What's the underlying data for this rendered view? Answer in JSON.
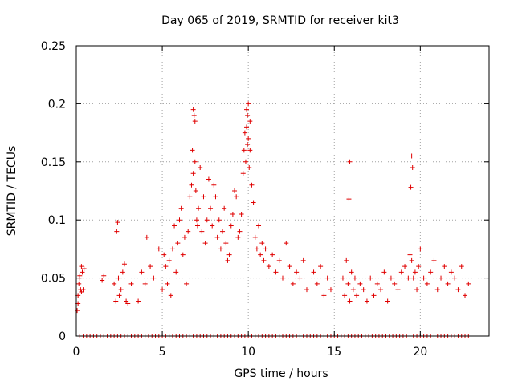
{
  "chart_data": {
    "type": "scatter",
    "title": "Day 065 of 2019, SRMTID for receiver kit3",
    "xlabel": "GPS time / hours",
    "ylabel": "SRMTID / TECUs",
    "xlim": [
      0,
      24
    ],
    "ylim": [
      0,
      0.25
    ],
    "xticks": [
      0,
      5,
      10,
      15,
      20
    ],
    "xtick_labels": [
      "0",
      "5",
      "10",
      "15",
      "20"
    ],
    "yticks": [
      0,
      0.05,
      0.1,
      0.15,
      0.2,
      0.25
    ],
    "ytick_labels": [
      "0",
      "0.05",
      "0.1",
      "0.15",
      "0.2",
      "0.25"
    ],
    "grid": true,
    "marker": "+",
    "color": "#e00000",
    "series": [
      {
        "name": "SRMTID",
        "x": [
          0.05,
          0.1,
          0.15,
          0.2,
          0.25,
          0.3,
          0.35,
          0.4,
          0.1,
          0.2,
          0.3,
          0.45,
          1.5,
          1.6,
          2.2,
          2.3,
          2.35,
          2.4,
          2.45,
          2.5,
          2.6,
          2.7,
          2.8,
          2.9,
          3.0,
          3.2,
          3.6,
          3.8,
          4.0,
          4.1,
          4.3,
          4.5,
          4.8,
          5.0,
          5.1,
          5.2,
          5.3,
          5.4,
          5.5,
          5.6,
          5.7,
          5.8,
          5.9,
          6.0,
          6.1,
          6.2,
          6.3,
          6.4,
          6.5,
          6.6,
          6.7,
          6.75,
          6.8,
          6.85,
          6.9,
          6.95,
          7.0,
          7.05,
          7.1,
          7.2,
          7.3,
          7.4,
          7.5,
          7.6,
          7.7,
          7.8,
          7.9,
          8.0,
          8.1,
          8.2,
          8.3,
          8.4,
          8.5,
          8.6,
          8.7,
          8.8,
          8.9,
          9.0,
          9.1,
          9.2,
          9.3,
          9.4,
          9.5,
          9.6,
          9.7,
          9.75,
          9.8,
          9.85,
          9.9,
          9.95,
          10.0,
          10.05,
          10.1,
          10.2,
          10.3,
          10.4,
          10.5,
          10.6,
          10.7,
          10.8,
          10.9,
          11.0,
          11.2,
          11.4,
          11.6,
          11.8,
          12.0,
          12.2,
          12.4,
          12.6,
          12.8,
          13.0,
          13.2,
          13.4,
          13.8,
          14.0,
          14.2,
          14.4,
          14.6,
          14.8,
          15.5,
          15.6,
          15.7,
          15.8,
          15.9,
          16.0,
          16.1,
          16.2,
          16.3,
          16.5,
          16.7,
          16.9,
          17.1,
          17.3,
          17.5,
          17.7,
          17.9,
          18.1,
          18.3,
          18.5,
          18.7,
          18.9,
          19.1,
          19.3,
          19.4,
          19.5,
          19.6,
          19.7,
          19.8,
          19.9,
          20.0,
          20.2,
          20.4,
          20.6,
          20.8,
          21.0,
          21.2,
          21.4,
          21.6,
          21.8,
          22.0,
          22.2,
          22.4,
          22.6,
          22.8,
          6.8,
          6.9,
          9.9,
          10.0,
          10.1,
          9.95,
          15.9,
          15.85,
          19.5,
          19.45,
          19.55
        ],
        "y": [
          0.022,
          0.035,
          0.045,
          0.05,
          0.04,
          0.06,
          0.055,
          0.04,
          0.028,
          0.052,
          0.038,
          0.058,
          0.048,
          0.052,
          0.045,
          0.03,
          0.09,
          0.098,
          0.05,
          0.035,
          0.04,
          0.055,
          0.062,
          0.03,
          0.028,
          0.045,
          0.03,
          0.055,
          0.045,
          0.085,
          0.06,
          0.05,
          0.075,
          0.04,
          0.07,
          0.06,
          0.045,
          0.065,
          0.035,
          0.075,
          0.095,
          0.055,
          0.08,
          0.1,
          0.11,
          0.07,
          0.085,
          0.045,
          0.09,
          0.12,
          0.13,
          0.16,
          0.14,
          0.19,
          0.15,
          0.125,
          0.1,
          0.095,
          0.11,
          0.145,
          0.09,
          0.12,
          0.08,
          0.1,
          0.135,
          0.11,
          0.095,
          0.13,
          0.12,
          0.085,
          0.1,
          0.075,
          0.09,
          0.11,
          0.08,
          0.065,
          0.07,
          0.095,
          0.105,
          0.125,
          0.12,
          0.085,
          0.09,
          0.105,
          0.14,
          0.16,
          0.175,
          0.15,
          0.18,
          0.165,
          0.17,
          0.145,
          0.16,
          0.13,
          0.115,
          0.085,
          0.075,
          0.095,
          0.07,
          0.08,
          0.065,
          0.075,
          0.06,
          0.07,
          0.055,
          0.065,
          0.05,
          0.08,
          0.06,
          0.045,
          0.055,
          0.05,
          0.065,
          0.04,
          0.055,
          0.045,
          0.06,
          0.035,
          0.05,
          0.04,
          0.05,
          0.035,
          0.065,
          0.045,
          0.03,
          0.055,
          0.04,
          0.05,
          0.035,
          0.045,
          0.04,
          0.03,
          0.05,
          0.035,
          0.045,
          0.04,
          0.055,
          0.03,
          0.05,
          0.045,
          0.04,
          0.055,
          0.06,
          0.05,
          0.07,
          0.065,
          0.05,
          0.055,
          0.04,
          0.06,
          0.075,
          0.05,
          0.045,
          0.055,
          0.065,
          0.04,
          0.05,
          0.06,
          0.045,
          0.055,
          0.05,
          0.04,
          0.06,
          0.035,
          0.045,
          0.195,
          0.185,
          0.195,
          0.2,
          0.185,
          0.19,
          0.15,
          0.118,
          0.155,
          0.128,
          0.145
        ],
        "zero_markers_x": [
          0.2,
          0.4,
          0.6,
          0.8,
          1.0,
          1.2,
          1.4,
          1.6,
          1.8,
          2.0,
          2.2,
          2.4,
          2.6,
          2.8,
          3.0,
          3.2,
          3.4,
          3.6,
          3.8,
          4.0,
          4.2,
          4.4,
          4.6,
          4.8,
          5.0,
          5.2,
          5.4,
          5.6,
          5.8,
          6.0,
          6.2,
          6.4,
          6.6,
          6.8,
          7.0,
          7.2,
          7.4,
          7.6,
          7.8,
          8.0,
          8.2,
          8.4,
          8.6,
          8.8,
          9.0,
          9.2,
          9.4,
          9.6,
          9.8,
          10.0,
          10.2,
          10.4,
          10.6,
          10.8,
          11.0,
          11.2,
          11.4,
          11.6,
          11.8,
          12.0,
          12.2,
          12.4,
          12.6,
          12.8,
          13.0,
          13.2,
          13.4,
          13.6,
          13.8,
          14.0,
          14.2,
          14.4,
          14.6,
          14.8,
          15.0,
          15.2,
          15.4,
          15.6,
          15.8,
          16.0,
          16.2,
          16.4,
          16.6,
          16.8,
          17.0,
          17.2,
          17.4,
          17.6,
          17.8,
          18.0,
          18.2,
          18.4,
          18.6,
          18.8,
          19.0,
          19.2,
          19.4,
          19.6,
          19.8,
          20.0,
          20.2,
          20.4,
          20.6,
          20.8,
          21.0,
          21.2,
          21.4,
          21.6,
          21.8,
          22.0,
          22.2,
          22.4,
          22.6,
          22.8
        ]
      }
    ]
  }
}
